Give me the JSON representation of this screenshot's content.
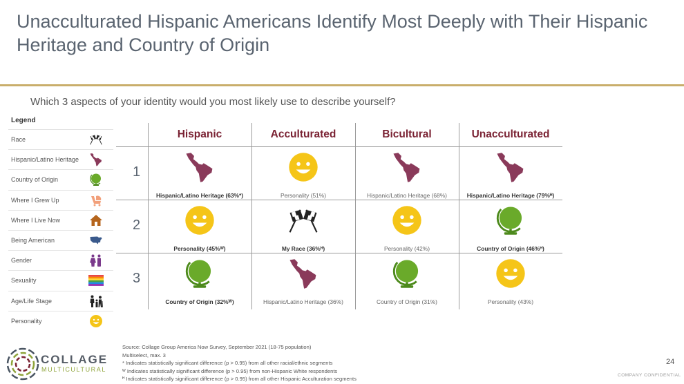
{
  "title": "Unacculturated Hispanic Americans Identify Most Deeply with Their Hispanic Heritage and Country of Origin",
  "question": "Which 3 aspects of your identity would you most likely use to describe yourself?",
  "colors": {
    "accent_gold": "#c9ae6b",
    "header_maroon": "#7a2233",
    "smiley_yellow": "#f5c518",
    "globe_green": "#6aaa2a",
    "map_maroon": "#8a3a5a"
  },
  "legend": {
    "heading": "Legend",
    "items": [
      {
        "label": "Race",
        "icon": "checkered-flags-icon"
      },
      {
        "label": "Hispanic/Latino Heritage",
        "icon": "latin-america-map-icon"
      },
      {
        "label": "Country of Origin",
        "icon": "globe-icon"
      },
      {
        "label": "Where I Grew Up",
        "icon": "baby-stroller-icon"
      },
      {
        "label": "Where I Live Now",
        "icon": "house-icon"
      },
      {
        "label": "Being American",
        "icon": "usa-map-icon"
      },
      {
        "label": "Gender",
        "icon": "gender-people-icon"
      },
      {
        "label": "Sexuality",
        "icon": "rainbow-flag-icon"
      },
      {
        "label": "Age/Life Stage",
        "icon": "family-icon"
      },
      {
        "label": "Personality",
        "icon": "smiley-face-icon"
      }
    ]
  },
  "table": {
    "columns": [
      "Hispanic",
      "Acculturated",
      "Bicultural",
      "Unacculturated"
    ],
    "ranks": [
      "1",
      "2",
      "3"
    ],
    "rows": [
      [
        {
          "icon": "latin-america-map-icon",
          "label": "Hispanic/Latino Heritage (63%*)",
          "bold": true
        },
        {
          "icon": "smiley-face-icon",
          "label": "Personality (51%)",
          "bold": false
        },
        {
          "icon": "latin-america-map-icon",
          "label": "Hispanic/Latino Heritage (68%)",
          "bold": false
        },
        {
          "icon": "latin-america-map-icon",
          "label": "Hispanic/Latino Heritage (79%ᴴ)",
          "bold": true
        }
      ],
      [
        {
          "icon": "smiley-face-icon",
          "label": "Personality (45%ᵂ)",
          "bold": true
        },
        {
          "icon": "checkered-flags-icon",
          "label": "My Race (36%ᴴ)",
          "bold": true
        },
        {
          "icon": "smiley-face-icon",
          "label": "Personality (42%)",
          "bold": false
        },
        {
          "icon": "globe-icon",
          "label": "Country of Origin (46%ᴴ)",
          "bold": true
        }
      ],
      [
        {
          "icon": "globe-icon",
          "label": "Country of Origin (32%ᵂ)",
          "bold": true
        },
        {
          "icon": "latin-america-map-icon",
          "label": "Hispanic/Latino Heritage (36%)",
          "bold": false
        },
        {
          "icon": "globe-icon",
          "label": "Country of Origin (31%)",
          "bold": false
        },
        {
          "icon": "smiley-face-icon",
          "label": "Personality (43%)",
          "bold": false
        }
      ]
    ]
  },
  "source": [
    "Source: Collage Group America Now Survey, September 2021 (18-75 population)",
    "Multiselect, max. 3",
    "* Indicates statistically significant difference (p > 0.95) from all other racial/ethnic segments",
    "ᵂ Indicates statistically significant difference (p > 0.95) from non-Hispanic White respondents",
    "ᴴ Indicates statistically significant difference (p > 0.95) from all other Hispanic Acculturation segments"
  ],
  "logo": {
    "name": "COLLAGE",
    "sub": "MULTICULTURAL"
  },
  "page_number": "24",
  "confidential": "COMPANY CONFIDENTIAL"
}
